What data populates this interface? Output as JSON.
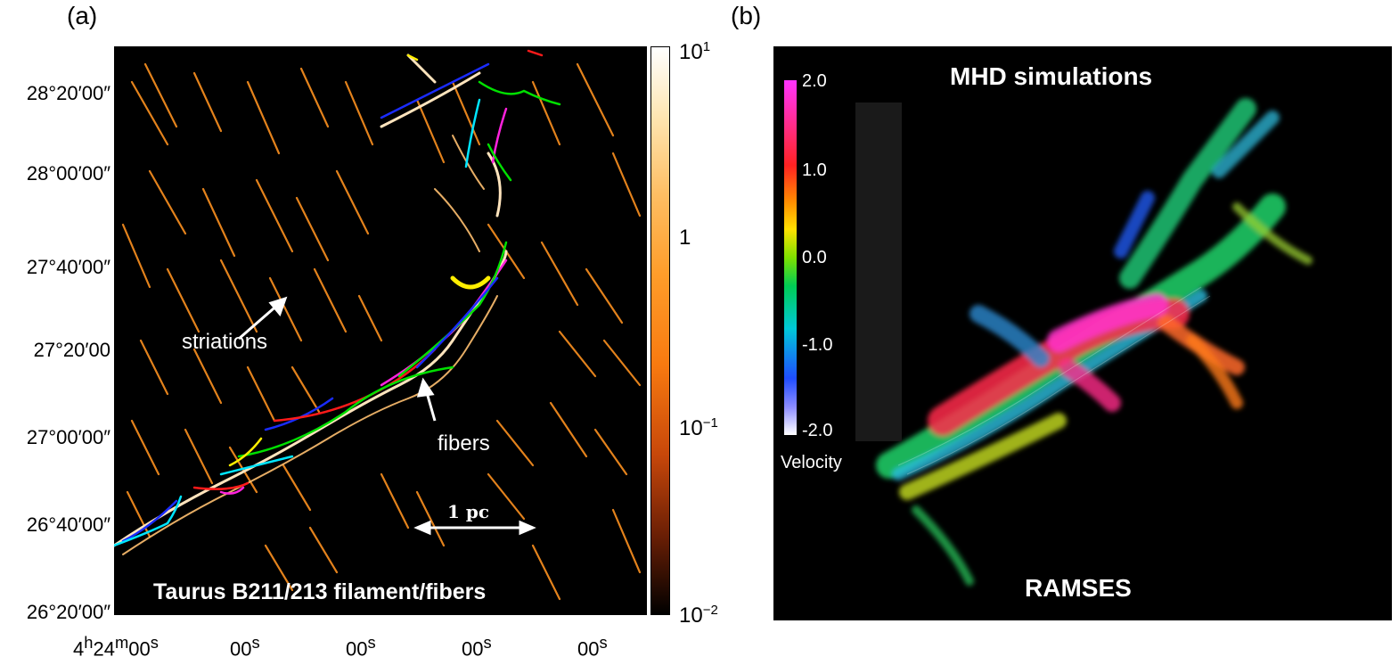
{
  "panel_a": {
    "label": "(a)",
    "title": "Taurus B211/213 filament/fibers",
    "y_ticks": [
      "28°20′00″",
      "28°00′00″",
      "27°40′00″",
      "27°20′00",
      "27°00′00″",
      "26°40′00″",
      "26°20′00″"
    ],
    "x_ticks": [
      {
        "base": "4",
        "h": "h",
        "m_base": "24",
        "m": "m",
        "s_base": "00",
        "s": "s"
      },
      {
        "base": "00",
        "s": "s"
      },
      {
        "base": "00",
        "s": "s"
      },
      {
        "base": "00",
        "s": "s"
      },
      {
        "base": "00",
        "s": "s"
      }
    ],
    "colorbar_ticks": [
      {
        "base": "10",
        "exp": "1"
      },
      {
        "base": "1",
        "exp": ""
      },
      {
        "base": "10",
        "exp": "−1"
      },
      {
        "base": "10",
        "exp": "−2"
      }
    ],
    "annotations": {
      "striations": "striations",
      "fibers": "fibers",
      "scale": "1 pc"
    }
  },
  "panel_b": {
    "label": "(b)",
    "title": "MHD simulations",
    "footer": "RAMSES",
    "velocity_label": "Velocity",
    "velocity_ticks": [
      "2.0",
      "1.0",
      "0.0",
      "-1.0",
      "-2.0"
    ]
  },
  "colors": {
    "map_orange": "#f59a2a",
    "map_cream": "#ffe7c2",
    "fiber_colors": [
      "#1a2cff",
      "#ff1a1a",
      "#00e000",
      "#ff22dd",
      "#00e5ff",
      "#ffee00"
    ]
  }
}
